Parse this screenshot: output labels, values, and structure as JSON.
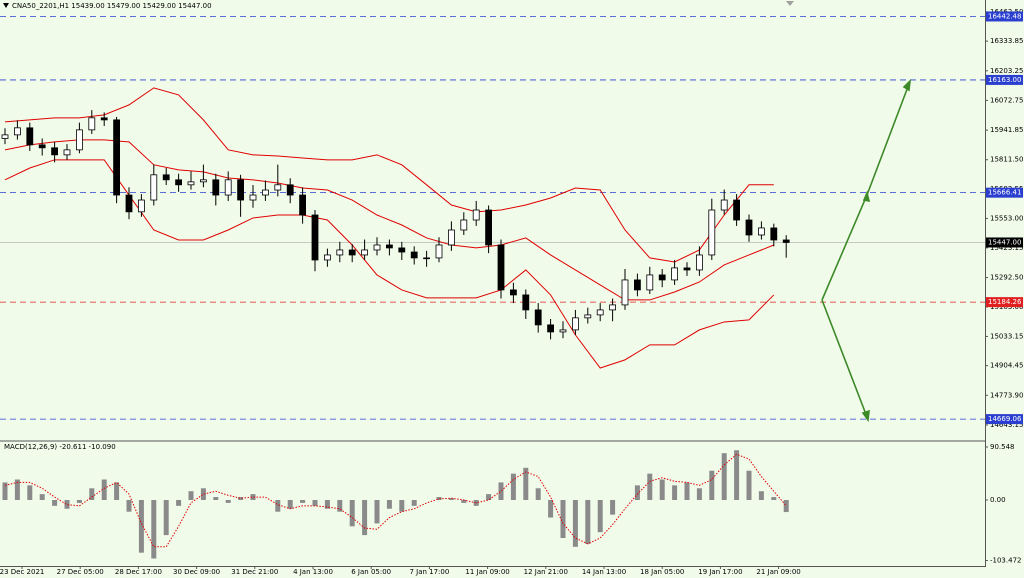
{
  "chart_data": {
    "type": "candlestick",
    "title": "CNA50_2201,H1  15439.00 15479.00 15429.00 15447.00",
    "ylim": [
      14577,
      16515
    ],
    "yticks": [
      {
        "value": 16462.5,
        "label": "16462.50"
      },
      {
        "value": 16333.85,
        "label": "16333.85"
      },
      {
        "value": 16203.25,
        "label": "16203.25"
      },
      {
        "value": 16072.75,
        "label": "16072.75"
      },
      {
        "value": 15941.85,
        "label": "15941.85"
      },
      {
        "value": 15811.5,
        "label": "15811.50"
      },
      {
        "value": 15682.55,
        "label": "15682.55"
      },
      {
        "value": 15553.0,
        "label": "15553.00"
      },
      {
        "value": 15423.15,
        "label": "15423.15"
      },
      {
        "value": 15292.5,
        "label": "15292.50"
      },
      {
        "value": 15163.0,
        "label": "15163.00"
      },
      {
        "value": 15033.15,
        "label": "15033.15"
      },
      {
        "value": 14904.45,
        "label": "14904.45"
      },
      {
        "value": 14773.9,
        "label": "14773.90"
      },
      {
        "value": 14643.15,
        "label": "14643.15"
      }
    ],
    "time_labels": [
      "23 Dec 2021",
      "27 Dec 05:00",
      "28 Dec 17:00",
      "30 Dec 09:00",
      "31 Dec 21:00",
      "4 Jan 13:00",
      "6 Jan 05:00",
      "7 Jan 17:00",
      "11 Jan 09:00",
      "12 Jan 21:00",
      "14 Jan 13:00",
      "18 Jan 05:00",
      "19 Jan 17:00",
      "21 Jan 09:00"
    ],
    "open": [
      15905,
      15921,
      15952,
      15877,
      15864,
      15833,
      15855,
      15943,
      15996,
      15987,
      15656,
      15582,
      15634,
      15745,
      15723,
      15701,
      15714,
      15723,
      15656,
      15723,
      15634,
      15656,
      15678,
      15701,
      15656,
      15568,
      15370,
      15392,
      15414,
      15392,
      15414,
      15436,
      15423,
      15405,
      15379,
      15379,
      15436,
      15502,
      15546,
      15590,
      15436,
      15238,
      15216,
      15150,
      15084,
      15053,
      15062,
      15115,
      15128,
      15150,
      15172,
      15282,
      15238,
      15304,
      15282,
      15335,
      15326,
      15392,
      15590,
      15634,
      15546,
      15480,
      15511,
      15458
    ],
    "high": [
      15950,
      15985,
      15975,
      15905,
      15890,
      15880,
      15975,
      16030,
      16020,
      16000,
      15690,
      15660,
      15790,
      15775,
      15750,
      15760,
      15790,
      15750,
      15760,
      15745,
      15700,
      15720,
      15790,
      15730,
      15690,
      15590,
      15420,
      15450,
      15440,
      15460,
      15470,
      15460,
      15450,
      15430,
      15410,
      15470,
      15540,
      15580,
      15630,
      15610,
      15460,
      15270,
      15240,
      15180,
      15110,
      15100,
      15150,
      15160,
      15180,
      15200,
      15330,
      15310,
      15340,
      15330,
      15370,
      15360,
      15430,
      15640,
      15680,
      15660,
      15570,
      15540,
      15530,
      15479
    ],
    "low": [
      15880,
      15900,
      15850,
      15830,
      15800,
      15810,
      15840,
      15925,
      15960,
      15620,
      15550,
      15560,
      15610,
      15700,
      15670,
      15680,
      15690,
      15610,
      15630,
      15560,
      15600,
      15630,
      15650,
      15620,
      15530,
      15320,
      15340,
      15360,
      15360,
      15370,
      15390,
      15390,
      15370,
      15350,
      15340,
      15360,
      15410,
      15480,
      15520,
      15400,
      15200,
      15180,
      15110,
      15050,
      15020,
      15025,
      15040,
      15090,
      15100,
      15100,
      15150,
      15210,
      15220,
      15250,
      15260,
      15300,
      15300,
      15370,
      15570,
      15520,
      15450,
      15460,
      15430,
      15380
    ],
    "close": [
      15921,
      15952,
      15877,
      15864,
      15833,
      15855,
      15943,
      15996,
      15987,
      15656,
      15582,
      15634,
      15745,
      15723,
      15701,
      15714,
      15723,
      15656,
      15723,
      15634,
      15656,
      15678,
      15701,
      15656,
      15568,
      15370,
      15392,
      15414,
      15392,
      15414,
      15436,
      15423,
      15405,
      15379,
      15379,
      15436,
      15502,
      15546,
      15590,
      15436,
      15238,
      15216,
      15150,
      15084,
      15053,
      15062,
      15115,
      15128,
      15150,
      15172,
      15282,
      15238,
      15304,
      15282,
      15335,
      15326,
      15392,
      15590,
      15634,
      15546,
      15480,
      15511,
      15458,
      15447
    ],
    "bands": {
      "color": "#e00000",
      "x": [
        0,
        2,
        4,
        6,
        8,
        10,
        12,
        14,
        16,
        18,
        20,
        22,
        24,
        26,
        28,
        30,
        32,
        34,
        36,
        38,
        40,
        42,
        44,
        46,
        48,
        50,
        52,
        54,
        56,
        58,
        60,
        62
      ],
      "upper": [
        15978,
        15987,
        15996,
        15996,
        16009,
        16053,
        16128,
        16097,
        15987,
        15855,
        15833,
        15828,
        15819,
        15811,
        15811,
        15833,
        15789,
        15701,
        15612,
        15582,
        15590,
        15612,
        15643,
        15687,
        15678,
        15502,
        15379,
        15361,
        15414,
        15568,
        15701,
        15701
      ],
      "middle": [
        15855,
        15877,
        15890,
        15899,
        15899,
        15890,
        15789,
        15767,
        15758,
        15731,
        15723,
        15709,
        15687,
        15678,
        15634,
        15568,
        15524,
        15467,
        15436,
        15423,
        15436,
        15467,
        15392,
        15326,
        15260,
        15194,
        15194,
        15229,
        15273,
        15348,
        15392,
        15436
      ],
      "lower": [
        15723,
        15775,
        15811,
        15811,
        15811,
        15656,
        15502,
        15458,
        15458,
        15502,
        15555,
        15568,
        15568,
        15546,
        15436,
        15304,
        15238,
        15203,
        15203,
        15203,
        15238,
        15326,
        15216,
        15040,
        14894,
        14930,
        14996,
        14996,
        15062,
        15097,
        15106,
        15216
      ]
    },
    "levels": [
      {
        "value": 16442.48,
        "label": "16442.48",
        "color": "#2a3fd0"
      },
      {
        "value": 16163.0,
        "label": "16163.00",
        "color": "#2a3fd0"
      },
      {
        "value": 15666.41,
        "label": "15666.41",
        "color": "#2a3fd0"
      },
      {
        "value": 15447.0,
        "label": "15447.00",
        "color": "#000000"
      },
      {
        "value": 15184.26,
        "label": "15184.26",
        "color": "#e02020"
      },
      {
        "value": 14669.06,
        "label": "14669.06",
        "color": "#2a3fd0"
      }
    ],
    "macd": {
      "title": "MACD(12,26,9) -20.611 -10.090",
      "ylim": [
        -112.8,
        99.1
      ],
      "yticks": [
        {
          "value": 90.548,
          "label": "90.548"
        },
        {
          "value": 0,
          "label": "0.00"
        },
        {
          "value": -103.472,
          "label": "-103.472"
        }
      ],
      "histogram": [
        30,
        35,
        25,
        10,
        -10,
        -15,
        -5,
        20,
        35,
        30,
        -20,
        -90,
        -100,
        -60,
        -10,
        15,
        20,
        5,
        -5,
        5,
        10,
        0,
        -20,
        -15,
        -5,
        -10,
        -15,
        -20,
        -45,
        -60,
        -40,
        -15,
        -20,
        -10,
        0,
        5,
        3,
        -5,
        -10,
        10,
        30,
        45,
        55,
        20,
        -30,
        -65,
        -80,
        -75,
        -55,
        -25,
        0,
        25,
        45,
        35,
        25,
        30,
        20,
        50,
        80,
        85,
        50,
        15,
        5,
        -20.611
      ],
      "signal": [
        25,
        30,
        30,
        20,
        5,
        -8,
        -10,
        5,
        20,
        30,
        10,
        -40,
        -80,
        -80,
        -45,
        -5,
        10,
        15,
        8,
        3,
        5,
        5,
        -8,
        -15,
        -10,
        -10,
        -12,
        -15,
        -30,
        -48,
        -50,
        -30,
        -20,
        -15,
        -5,
        2,
        3,
        0,
        -5,
        0,
        15,
        35,
        48,
        40,
        5,
        -40,
        -65,
        -75,
        -65,
        -42,
        -15,
        10,
        32,
        38,
        32,
        30,
        25,
        35,
        60,
        78,
        70,
        40,
        15,
        -10.09
      ],
      "histogram_color": "#8a8a8a",
      "signal_color": "#e00000"
    }
  }
}
